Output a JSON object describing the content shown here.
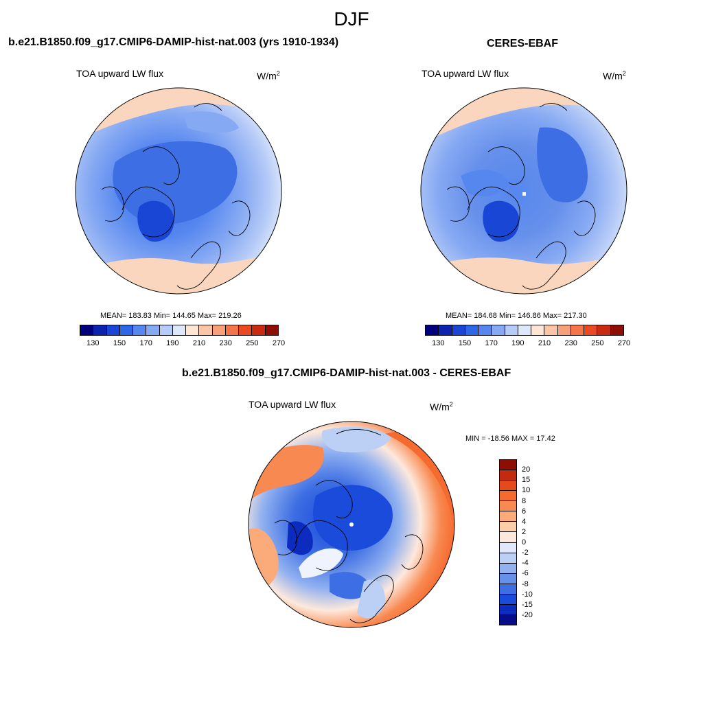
{
  "main_title": "DJF",
  "panels": [
    {
      "title": "b.e21.B1850.f09_g17.CMIP6-DAMIP-hist-nat.003 (yrs 1910-1934)",
      "variable": "TOA upward LW flux",
      "units": "W/m",
      "units_sup": "2",
      "stats": "MEAN= 183.83  Min= 144.65  Max= 219.26"
    },
    {
      "title": "CERES-EBAF",
      "variable": "TOA upward LW flux",
      "units": "W/m",
      "units_sup": "2",
      "stats": "MEAN= 184.68  Min= 146.86  Max= 217.30"
    },
    {
      "title": "b.e21.B1850.f09_g17.CMIP6-DAMIP-hist-nat.003 - CERES-EBAF",
      "variable": "TOA upward LW flux",
      "units": "W/m",
      "units_sup": "2",
      "stats": "MIN = -18.56 MAX =  17.42"
    }
  ],
  "abs_colorbar": {
    "colors": [
      "#00007a",
      "#0a24b0",
      "#1a46d6",
      "#2e66e8",
      "#5687ef",
      "#86a9f3",
      "#b6cbf7",
      "#dde8fb",
      "#fde6d4",
      "#fbc5a6",
      "#f8a07a",
      "#f47548",
      "#e94a22",
      "#c92a10",
      "#8e0e06"
    ],
    "labels": [
      "130",
      "150",
      "170",
      "190",
      "210",
      "230",
      "250",
      "270"
    ]
  },
  "diff_colorbar": {
    "colors": [
      "#8e0e06",
      "#c42a0e",
      "#e54a1c",
      "#f56a2e",
      "#f88950",
      "#fbab7a",
      "#fdcca8",
      "#fde9dc",
      "#dfe9fb",
      "#bcd0f6",
      "#91b1f0",
      "#6690ea",
      "#3d6ee3",
      "#1a4bdb",
      "#0c2cc0",
      "#050e88"
    ],
    "labels": [
      "20",
      "15",
      "10",
      "8",
      "6",
      "4",
      "2",
      "0",
      "-2",
      "-4",
      "-6",
      "-8",
      "-10",
      "-15",
      "-20"
    ]
  }
}
